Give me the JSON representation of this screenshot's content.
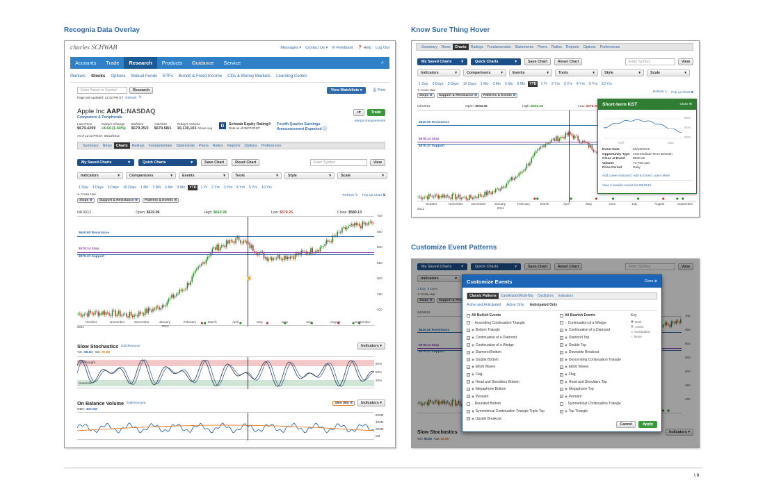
{
  "page": {
    "left_title": "Recognia Data Overlay",
    "right_top_title": "Know Sure Thing Hover",
    "right_bottom_title": "Customize Event Patterns",
    "page_number": "\\ 9"
  },
  "brand": {
    "logo": "charles SCHWAB",
    "util_links": [
      "Messages ▾",
      "Contact Us ▾",
      "✉ Feedback",
      "❓ Help",
      "Log Out"
    ]
  },
  "mainnav": [
    "Accounts",
    "Trade",
    "Research",
    "Products",
    "Guidance",
    "Service"
  ],
  "subnav": [
    "Markets",
    "Stocks",
    "Options",
    "Mutual Funds",
    "ETFs",
    "Bonds & Fixed Income",
    "CDs & Money Markets",
    "Learning Center"
  ],
  "search": {
    "placeholder": "Enter Name or Symbol",
    "button": "Research",
    "updated": "Page last updated: 12:42 PM ET",
    "refresh": "Refresh",
    "watchlist": "View Watchlists ▾",
    "print": "Print"
  },
  "quote": {
    "name": "Apple Inc",
    "ticker": "AAPL",
    "exchange": ":NASDAQ",
    "industry": "Computers & Peripherals",
    "trade": "Trade",
    "margin": "Margin Requirements",
    "labels": [
      "Last Price",
      "Today's Change",
      "Bid/Size",
      "Ask/Size",
      "Today's Volume"
    ],
    "values": [
      "$679.4299",
      "+8.64 (1.44%)",
      "$679.35/2",
      "$679.58/1",
      "10,130,103"
    ],
    "volume_note": "Above Avg",
    "asof": "As of 12:42 PM ET, 09/13/2012",
    "rating_badge": "D",
    "rating_title": "Schwab Equity Rating®",
    "rating_date": "Data as of 09/07/2012*",
    "earnings": "Fourth Quarter Earnings Announcement Expected"
  },
  "tabs": [
    "Summary",
    "News",
    "Charts",
    "Ratings",
    "Fundamentals",
    "Statements",
    "Peers",
    "Ratios",
    "Reports",
    "Options",
    "Preferences"
  ],
  "toolbar": {
    "saved": "My Saved Charts",
    "quick": "Quick Charts",
    "save": "Save Chart",
    "reset": "Reset Chart",
    "symbol_placeholder": "Enter Symbol",
    "view": "View"
  },
  "selects": [
    "Indicators",
    "Comparisons",
    "Events",
    "Tools",
    "Style",
    "Scale"
  ],
  "periods": [
    "1 Day",
    "3 Days",
    "5 Days",
    "10 Days",
    "1 Mo",
    "3 Mo",
    "6 Mo",
    "9 Mo",
    "YTD",
    "1 Yr",
    "2 Yrs",
    "3 Yrs",
    "4 Yrs",
    "5 Yrs",
    "10 Yrs"
  ],
  "crosshair": "Cross-Hair",
  "chips": [
    "Stops",
    "Support & Resistance",
    "Patterns & Events"
  ],
  "refresh": "Refresh",
  "popup": "Pop-up Chart",
  "ohlc": {
    "date": "04/16/12",
    "open_label": "Open:",
    "open": "$610.06",
    "high_label": "High:",
    "high": "$610.28",
    "low_label": "Low:",
    "low": "$578.25",
    "close_label": "Close:",
    "close": "$580.13"
  },
  "levels": {
    "resistance": "$640.60 Resistance",
    "stop": "$578.14 Stop",
    "support": "$570.37 Support"
  },
  "chart_data": {
    "type": "line",
    "title": "",
    "xlabel": "",
    "ylabel": "",
    "x": [
      "Oct 2011",
      "Nov",
      "Dec",
      "Jan 2012",
      "Feb",
      "Mar",
      "Apr",
      "May",
      "Jun",
      "Jul",
      "Aug",
      "Sep"
    ],
    "series": [
      {
        "values": [
          390,
          395,
          385,
          410,
          475,
          595,
          630,
          570,
          575,
          600,
          665,
          680
        ]
      }
    ],
    "y_ticks": [
      700,
      650,
      600,
      550,
      500,
      450,
      400
    ],
    "ylim": [
      350,
      700
    ],
    "x_labels": [
      "October",
      "November",
      "December",
      "January",
      "February",
      "March",
      "April",
      "May",
      "June",
      "July",
      "August",
      "September"
    ],
    "year_left": "2011",
    "year_mid": "2012"
  },
  "stoch": {
    "title": "Slow Stochastics",
    "edit": "Edit",
    "remove": "Remove",
    "k_label": "%K:",
    "k": "86.84",
    "d_label": "%D:",
    "d": "90.89",
    "overbought": "Overbought",
    "oversold": "Oversold",
    "ticks": [
      "80%",
      "50%",
      "20%"
    ],
    "indicators": "Indicators ▾"
  },
  "obv": {
    "title": "On Balance Volume",
    "edit": "Edit",
    "remove": "Remove",
    "label": "OBV:",
    "value": "400.0M",
    "sma": "SMA (50)",
    "indicators": "Indicators ▾",
    "ticks": [
      "600M",
      "400M",
      "200M",
      "0M"
    ]
  },
  "kst": {
    "title": "Short-term KST",
    "close": "Close ⊗",
    "ticks": [
      "80%",
      "60%",
      "50%"
    ],
    "x_labels": [
      "April",
      "May"
    ],
    "fields": [
      [
        "Event Date",
        "03/16/2012"
      ],
      [
        "Opportunity Type",
        "Intermediate-Term-Bearish"
      ],
      [
        "Close at Event",
        "$580.32"
      ],
      [
        "Volume",
        "73,709,120"
      ],
      [
        "Price Period",
        "Daily"
      ]
    ],
    "links": "Add Lower Indicator | Add & Zoom | Learn More",
    "more": "View 2 bearish events for 09/10/12"
  },
  "customize": {
    "title": "Customize Events",
    "close": "Close ⊗",
    "tabs": [
      "Classic Patterns",
      "Candlestick/Multi-Bar",
      "Oscillators",
      "Indicators"
    ],
    "filters": [
      "Active and Anticipated",
      "Active Only",
      "Anticipated Only"
    ],
    "bullish_head": "All Bullish Events",
    "bearish_head": "All Bearish Events",
    "key_head": "Key",
    "key": [
      "Both",
      "Active",
      "Anticipated",
      "None"
    ],
    "bullish": [
      "Ascending Continuation Triangle",
      "Bottom Triangle",
      "Continuation of a Diamond",
      "Continuation of a Wedge",
      "Diamond Bottom",
      "Double Bottom",
      "Elliott Waves",
      "Flag",
      "Head and Shoulders Bottom",
      "Megaphone Bottom",
      "Pennant",
      "Rounded Bottom",
      "Symmetrical Continuation Triangle Triple Top",
      "Upside Breakout"
    ],
    "bearish": [
      "Continuation of a Wedge",
      "Continuation of a Diamond",
      "Diamond Top",
      "Double Top",
      "Downside Breakout",
      "Descending Continuation Triangle",
      "Elliott Waves",
      "Flag",
      "Head and Shoulders Top",
      "Megaphone Top",
      "Pennant",
      "Symmetrical Continuation Triangle",
      "Top Triangle"
    ],
    "cancel": "Cancel",
    "apply": "Apply"
  }
}
